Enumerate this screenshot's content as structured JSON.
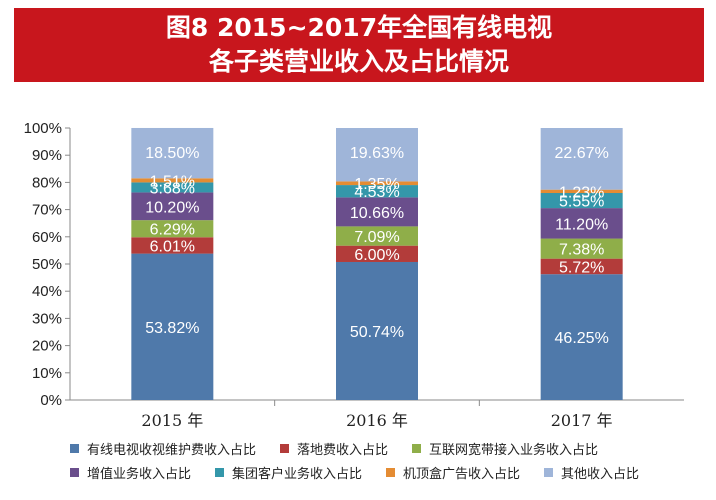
{
  "title": {
    "line1": "图8  2015~2017年全国有线电视",
    "line2": "各子类营业收入及占比情况"
  },
  "chart_data": {
    "type": "bar",
    "stacked": true,
    "categories": [
      "2015 年",
      "2016 年",
      "2017 年"
    ],
    "series": [
      {
        "name": "有线电视收视维护费收入占比",
        "color": "#4f79aa",
        "values": [
          53.82,
          50.74,
          46.25
        ],
        "labels": [
          "53.82%",
          "50.74%",
          "46.25%"
        ]
      },
      {
        "name": "落地费收入占比",
        "color": "#b33c3a",
        "values": [
          6.01,
          6.0,
          5.72
        ],
        "labels": [
          "6.01%",
          "6.00%",
          "5.72%"
        ]
      },
      {
        "name": "互联网宽带接入业务收入占比",
        "color": "#8fae49",
        "values": [
          6.29,
          7.09,
          7.38
        ],
        "labels": [
          "6.29%",
          "7.09%",
          "7.38%"
        ]
      },
      {
        "name": "增值业务收入占比",
        "color": "#6a4e8c",
        "values": [
          10.2,
          10.66,
          11.2
        ],
        "labels": [
          "10.20%",
          "10.66%",
          "11.20%"
        ]
      },
      {
        "name": "集团客户业务收入占比",
        "color": "#3497aa",
        "values": [
          3.68,
          4.53,
          5.55
        ],
        "labels": [
          "3.68%",
          "4.53%",
          "5.55%"
        ]
      },
      {
        "name": "机顶盒广告收入占比",
        "color": "#e48c33",
        "values": [
          1.51,
          1.35,
          1.23
        ],
        "labels": [
          "1.51%",
          "1.35%",
          "1.23%"
        ]
      },
      {
        "name": "其他收入占比",
        "color": "#9fb5d9",
        "values": [
          18.5,
          19.63,
          22.67
        ],
        "labels": [
          "18.50%",
          "19.63%",
          "22.67%"
        ]
      }
    ],
    "yticks": [
      "0%",
      "10%",
      "20%",
      "30%",
      "40%",
      "50%",
      "60%",
      "70%",
      "80%",
      "90%",
      "100%"
    ],
    "ylim": [
      0,
      100
    ],
    "grid": false,
    "legend_position": "bottom"
  }
}
